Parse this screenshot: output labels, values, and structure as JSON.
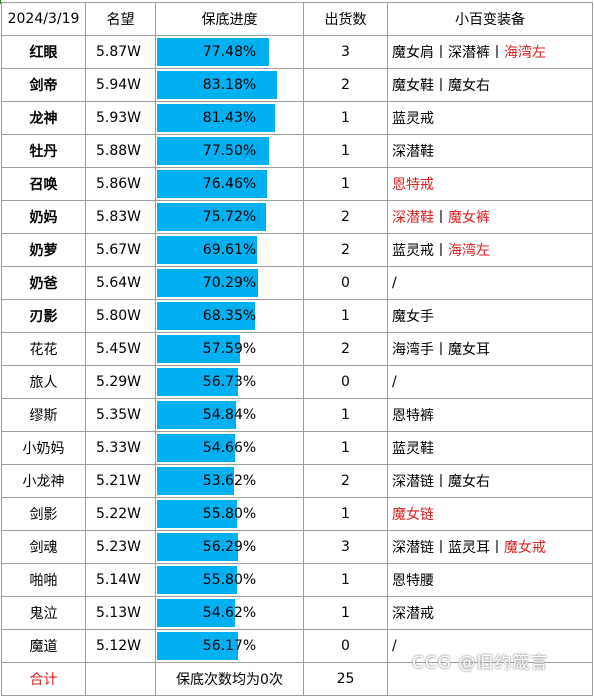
{
  "header": {
    "date": "2024/3/19",
    "fame": "名望",
    "progress": "保底进度",
    "shipments": "出货数",
    "equipment": "小百变装备"
  },
  "rows": [
    {
      "name": "红眼",
      "bold": true,
      "fame": "5.87W",
      "progress": 77.48,
      "progress_label": "77.48%",
      "shipments": "3",
      "equip": [
        {
          "text": "魔女肩",
          "red": false
        },
        {
          "text": "深潜裤",
          "red": false
        },
        {
          "text": "海湾左",
          "red": true
        }
      ]
    },
    {
      "name": "剑帝",
      "bold": true,
      "fame": "5.94W",
      "progress": 83.18,
      "progress_label": "83.18%",
      "shipments": "2",
      "equip": [
        {
          "text": "魔女鞋",
          "red": false
        },
        {
          "text": "魔女右",
          "red": false
        }
      ]
    },
    {
      "name": "龙神",
      "bold": true,
      "fame": "5.93W",
      "progress": 81.43,
      "progress_label": "81.43%",
      "shipments": "1",
      "equip": [
        {
          "text": "蓝灵戒",
          "red": false
        }
      ]
    },
    {
      "name": "牡丹",
      "bold": true,
      "fame": "5.88W",
      "progress": 77.5,
      "progress_label": "77.50%",
      "shipments": "1",
      "equip": [
        {
          "text": "深潜鞋",
          "red": false
        }
      ]
    },
    {
      "name": "召唤",
      "bold": true,
      "fame": "5.86W",
      "progress": 76.46,
      "progress_label": "76.46%",
      "shipments": "1",
      "equip": [
        {
          "text": "恩特戒",
          "red": true
        }
      ]
    },
    {
      "name": "奶妈",
      "bold": true,
      "fame": "5.83W",
      "progress": 75.72,
      "progress_label": "75.72%",
      "shipments": "2",
      "equip": [
        {
          "text": "深潜鞋",
          "red": true
        },
        {
          "text": "魔女裤",
          "red": true
        }
      ]
    },
    {
      "name": "奶萝",
      "bold": true,
      "fame": "5.67W",
      "progress": 69.61,
      "progress_label": "69.61%",
      "shipments": "2",
      "equip": [
        {
          "text": "蓝灵戒",
          "red": false
        },
        {
          "text": "海湾左",
          "red": true
        }
      ]
    },
    {
      "name": "奶爸",
      "bold": true,
      "fame": "5.64W",
      "progress": 70.29,
      "progress_label": "70.29%",
      "shipments": "0",
      "equip": [
        {
          "text": "/",
          "red": false
        }
      ]
    },
    {
      "name": "刃影",
      "bold": true,
      "fame": "5.80W",
      "progress": 68.35,
      "progress_label": "68.35%",
      "shipments": "1",
      "equip": [
        {
          "text": "魔女手",
          "red": false
        }
      ]
    },
    {
      "name": "花花",
      "bold": false,
      "fame": "5.45W",
      "progress": 57.59,
      "progress_label": "57.59%",
      "shipments": "2",
      "equip": [
        {
          "text": "海湾手",
          "red": false
        },
        {
          "text": "魔女耳",
          "red": false
        }
      ]
    },
    {
      "name": "旅人",
      "bold": false,
      "fame": "5.29W",
      "progress": 56.73,
      "progress_label": "56.73%",
      "shipments": "0",
      "equip": [
        {
          "text": "/",
          "red": false
        }
      ]
    },
    {
      "name": "缪斯",
      "bold": false,
      "fame": "5.35W",
      "progress": 54.84,
      "progress_label": "54.84%",
      "shipments": "1",
      "equip": [
        {
          "text": "恩特裤",
          "red": false
        }
      ]
    },
    {
      "name": "小奶妈",
      "bold": false,
      "fame": "5.33W",
      "progress": 54.66,
      "progress_label": "54.66%",
      "shipments": "1",
      "equip": [
        {
          "text": "蓝灵鞋",
          "red": false
        }
      ]
    },
    {
      "name": "小龙神",
      "bold": false,
      "fame": "5.21W",
      "progress": 53.62,
      "progress_label": "53.62%",
      "shipments": "2",
      "equip": [
        {
          "text": "深潜链",
          "red": false
        },
        {
          "text": "魔女右",
          "red": false
        }
      ]
    },
    {
      "name": "剑影",
      "bold": false,
      "fame": "5.22W",
      "progress": 55.8,
      "progress_label": "55.80%",
      "shipments": "1",
      "equip": [
        {
          "text": "魔女链",
          "red": true
        }
      ]
    },
    {
      "name": "剑魂",
      "bold": false,
      "fame": "5.23W",
      "progress": 56.29,
      "progress_label": "56.29%",
      "shipments": "3",
      "equip": [
        {
          "text": "深潜链",
          "red": false
        },
        {
          "text": "蓝灵耳",
          "red": false
        },
        {
          "text": "魔女戒",
          "red": true
        }
      ]
    },
    {
      "name": "啪啪",
      "bold": false,
      "fame": "5.14W",
      "progress": 55.8,
      "progress_label": "55.80%",
      "shipments": "1",
      "equip": [
        {
          "text": "恩特腰",
          "red": false
        }
      ]
    },
    {
      "name": "鬼泣",
      "bold": false,
      "fame": "5.13W",
      "progress": 54.62,
      "progress_label": "54.62%",
      "shipments": "1",
      "equip": [
        {
          "text": "深潜戒",
          "red": false
        }
      ]
    },
    {
      "name": "魔道",
      "bold": false,
      "fame": "5.12W",
      "progress": 56.17,
      "progress_label": "56.17%",
      "shipments": "0",
      "equip": [
        {
          "text": "/",
          "red": false
        }
      ]
    }
  ],
  "footer": {
    "label": "合计",
    "note": "保底次数均为0次",
    "total_shipments": "25"
  },
  "watermark": "CCG @旧约箴言",
  "colors": {
    "bar": "#00b0f0",
    "highlight_text": "#e02020",
    "grid": "#9e9e9e"
  },
  "separator": "丨"
}
